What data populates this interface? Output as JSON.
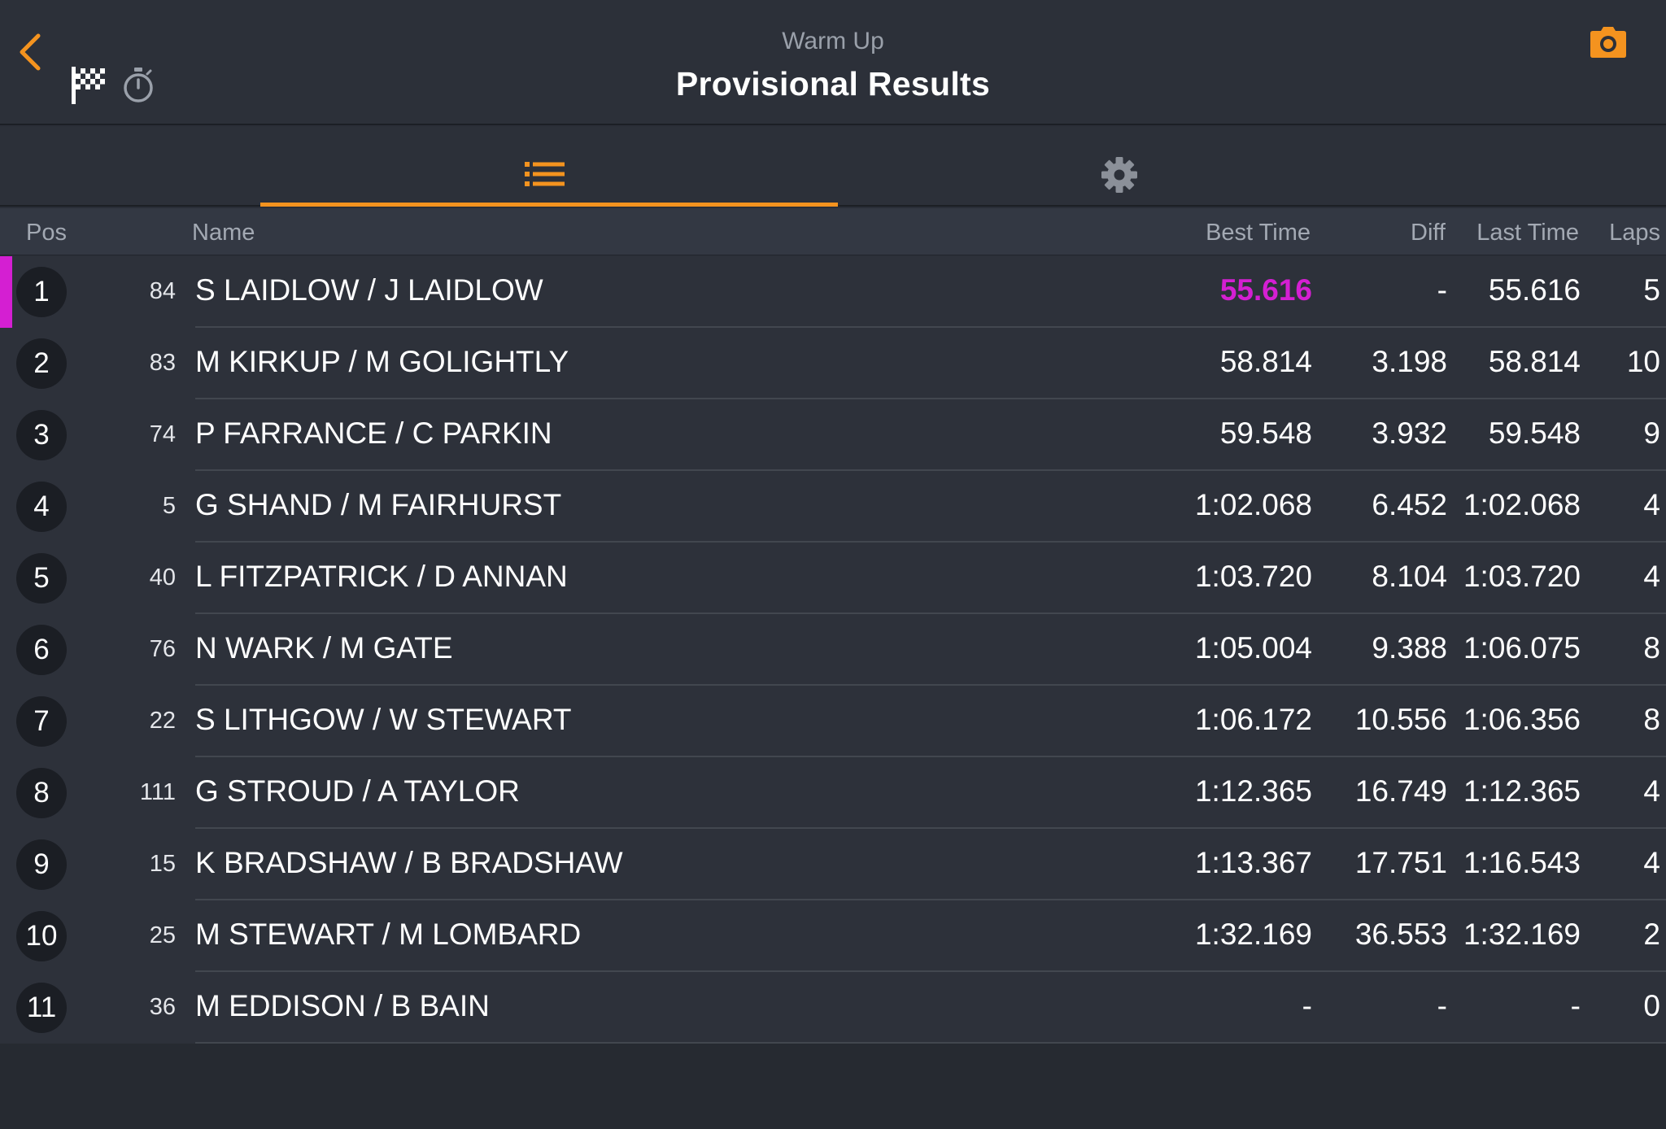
{
  "header": {
    "subtitle": "Warm Up",
    "title": "Provisional Results"
  },
  "tabs": [
    {
      "icon": "list-icon",
      "active": true
    },
    {
      "icon": "gear-icon",
      "active": false
    }
  ],
  "colors": {
    "accent": "#f4931f",
    "fastest": "#d41fd2"
  },
  "columns": {
    "pos": "Pos",
    "name": "Name",
    "best": "Best Time",
    "diff": "Diff",
    "last": "Last Time",
    "laps": "Laps"
  },
  "rows": [
    {
      "pos": "1",
      "num": "84",
      "name": "S LAIDLOW / J LAIDLOW",
      "best": "55.616",
      "diff": "-",
      "last": "55.616",
      "laps": "5"
    },
    {
      "pos": "2",
      "num": "83",
      "name": "M KIRKUP / M GOLIGHTLY",
      "best": "58.814",
      "diff": "3.198",
      "last": "58.814",
      "laps": "10"
    },
    {
      "pos": "3",
      "num": "74",
      "name": "P FARRANCE / C PARKIN",
      "best": "59.548",
      "diff": "3.932",
      "last": "59.548",
      "laps": "9"
    },
    {
      "pos": "4",
      "num": "5",
      "name": "G SHAND / M FAIRHURST",
      "best": "1:02.068",
      "diff": "6.452",
      "last": "1:02.068",
      "laps": "4"
    },
    {
      "pos": "5",
      "num": "40",
      "name": "L FITZPATRICK / D ANNAN",
      "best": "1:03.720",
      "diff": "8.104",
      "last": "1:03.720",
      "laps": "4"
    },
    {
      "pos": "6",
      "num": "76",
      "name": "N WARK / M GATE",
      "best": "1:05.004",
      "diff": "9.388",
      "last": "1:06.075",
      "laps": "8"
    },
    {
      "pos": "7",
      "num": "22",
      "name": "S LITHGOW / W STEWART",
      "best": "1:06.172",
      "diff": "10.556",
      "last": "1:06.356",
      "laps": "8"
    },
    {
      "pos": "8",
      "num": "111",
      "name": "G STROUD / A TAYLOR",
      "best": "1:12.365",
      "diff": "16.749",
      "last": "1:12.365",
      "laps": "4"
    },
    {
      "pos": "9",
      "num": "15",
      "name": "K BRADSHAW / B BRADSHAW",
      "best": "1:13.367",
      "diff": "17.751",
      "last": "1:16.543",
      "laps": "4"
    },
    {
      "pos": "10",
      "num": "25",
      "name": "M STEWART / M LOMBARD",
      "best": "1:32.169",
      "diff": "36.553",
      "last": "1:32.169",
      "laps": "2"
    },
    {
      "pos": "11",
      "num": "36",
      "name": "M EDDISON / B BAIN",
      "best": "-",
      "diff": "-",
      "last": "-",
      "laps": "0"
    }
  ]
}
